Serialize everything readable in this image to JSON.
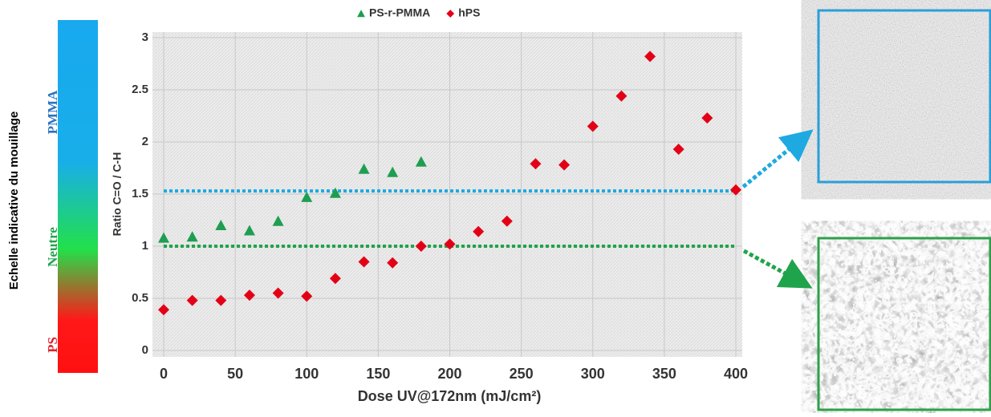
{
  "chart_data": {
    "type": "scatter",
    "x_label": "Dose UV@172nm (mJ/cm²)",
    "y_label": "Ratio C=O / C-H",
    "xlim": [
      0,
      400
    ],
    "ylim": [
      0,
      3
    ],
    "xticks": [
      0,
      50,
      100,
      150,
      200,
      250,
      300,
      350,
      400
    ],
    "yticks": [
      0,
      0.5,
      1,
      1.5,
      2,
      2.5,
      3
    ],
    "grid": true,
    "legend": "top",
    "series": [
      {
        "name": "PS-r-PMMA",
        "color": "#1e9e50",
        "marker": "triangle",
        "x": [
          0,
          20,
          40,
          60,
          80,
          100,
          120,
          140,
          160,
          180
        ],
        "values": [
          1.08,
          1.09,
          1.2,
          1.15,
          1.24,
          1.47,
          1.51,
          1.74,
          1.71,
          1.81
        ]
      },
      {
        "name": "hPS",
        "color": "#e30016",
        "marker": "diamond",
        "x": [
          0,
          20,
          40,
          60,
          80,
          100,
          120,
          140,
          160,
          180,
          200,
          220,
          240,
          260,
          280,
          300,
          320,
          340,
          360,
          380,
          400
        ],
        "values": [
          0.39,
          0.48,
          0.48,
          0.53,
          0.55,
          0.52,
          0.69,
          0.85,
          0.84,
          1.0,
          1.02,
          1.14,
          1.24,
          1.79,
          1.78,
          2.15,
          2.44,
          2.82,
          1.93,
          2.23,
          1.54
        ]
      }
    ],
    "ref_lines": [
      {
        "value": 1.53,
        "color": "#1ea9e1"
      },
      {
        "value": 1,
        "color": "#1fa44c"
      }
    ],
    "scale": {
      "label": "Echelle indicative du mouillage",
      "levels": [
        {
          "text": "PMMA",
          "color": "#2a73c0"
        },
        {
          "text": "Neutre",
          "color": "#1fa44c"
        },
        {
          "text": "PS",
          "color": "#e3202a"
        }
      ]
    }
  }
}
